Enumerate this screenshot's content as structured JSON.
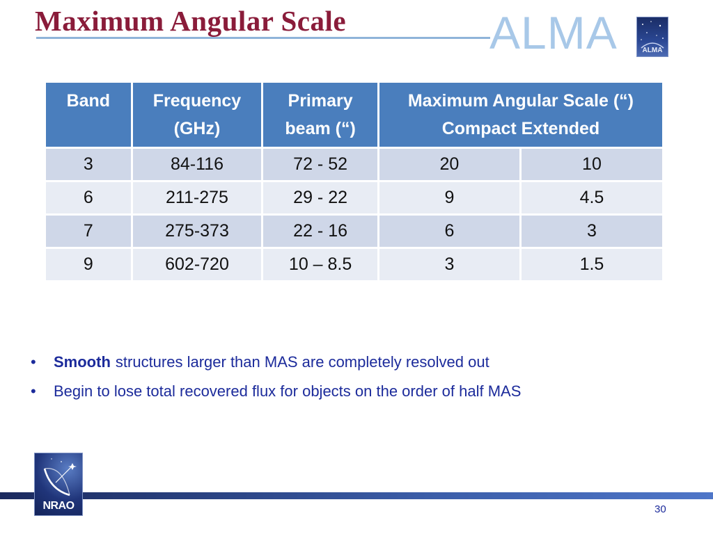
{
  "slide": {
    "title": "Maximum Angular Scale",
    "logo_text": "ALMA",
    "logo_small_text": "ALMA",
    "page_number": "30"
  },
  "table": {
    "headers": {
      "band": "Band",
      "frequency_line1": "Frequency",
      "frequency_line2": "(GHz)",
      "beam_line1": "Primary",
      "beam_line2": "beam (“)",
      "mas_line1": "Maximum Angular Scale (“)",
      "compact": "Compact",
      "extended": "Extended"
    },
    "rows": [
      {
        "band": "3",
        "frequency": "84-116",
        "beam": "72 - 52",
        "compact": "20",
        "extended": "10"
      },
      {
        "band": "6",
        "frequency": "211-275",
        "beam": "29 - 22",
        "compact": "9",
        "extended": "4.5"
      },
      {
        "band": "7",
        "frequency": "275-373",
        "beam": "22 - 16",
        "compact": "6",
        "extended": "3"
      },
      {
        "band": "9",
        "frequency": "602-720",
        "beam": "10 – 8.5",
        "compact": "3",
        "extended": "1.5"
      }
    ]
  },
  "bullets": [
    {
      "bold": "Smooth",
      "text": "structures larger than MAS are completely resolved out"
    },
    {
      "bold": "",
      "text": "Begin to lose total recovered flux for objects on the order of half MAS"
    }
  ],
  "footer": {
    "nrao_logo_text": "NRAO"
  },
  "colors": {
    "title": "#8a1c3a",
    "header_bg": "#4a7ebd",
    "row_dark": "#cfd7e8",
    "row_light": "#e8ecf4",
    "bullet_text": "#1c2b9b"
  }
}
